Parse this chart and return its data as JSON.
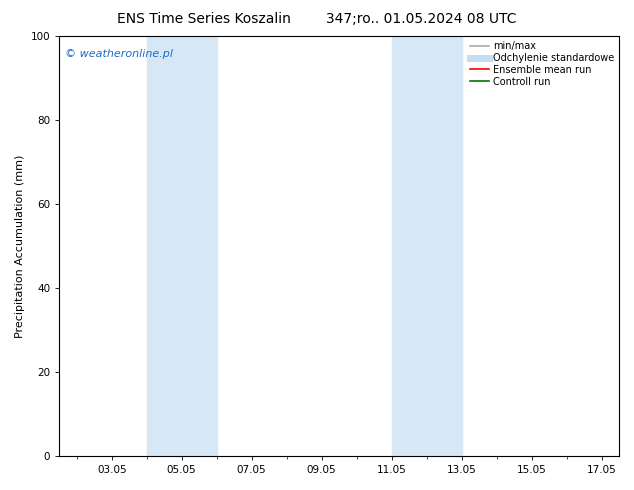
{
  "title": "ENS Time Series Koszalin        347;ro.. 01.05.2024 08 UTC",
  "ylabel": "Precipitation Accumulation (mm)",
  "ylim": [
    0,
    100
  ],
  "yticks": [
    0,
    20,
    40,
    60,
    80,
    100
  ],
  "x_tick_labels": [
    "03.05",
    "05.05",
    "07.05",
    "09.05",
    "11.05",
    "13.05",
    "15.05",
    "17.05"
  ],
  "x_tick_days": [
    3,
    5,
    7,
    9,
    11,
    13,
    15,
    17
  ],
  "x_min": 1.5,
  "x_max": 17.5,
  "shaded_regions": [
    {
      "start_day": 4.0,
      "end_day": 6.0
    },
    {
      "start_day": 11.0,
      "end_day": 13.0
    }
  ],
  "shade_color": "#d6e8f5",
  "background_color": "#ffffff",
  "watermark_text": "© weatheronline.pl",
  "watermark_color": "#1a6bcc",
  "legend_items": [
    {
      "label": "min/max",
      "color": "#aaaaaa",
      "lw": 1.2
    },
    {
      "label": "Odchylenie standardowe",
      "color": "#c5ddf0",
      "lw": 5
    },
    {
      "label": "Ensemble mean run",
      "color": "#ff0000",
      "lw": 1.2
    },
    {
      "label": "Controll run",
      "color": "#007700",
      "lw": 1.2
    }
  ],
  "spine_color": "#000000",
  "tick_color": "#000000",
  "title_fontsize": 10,
  "label_fontsize": 8,
  "tick_fontsize": 7.5,
  "legend_fontsize": 7,
  "watermark_fontsize": 8
}
